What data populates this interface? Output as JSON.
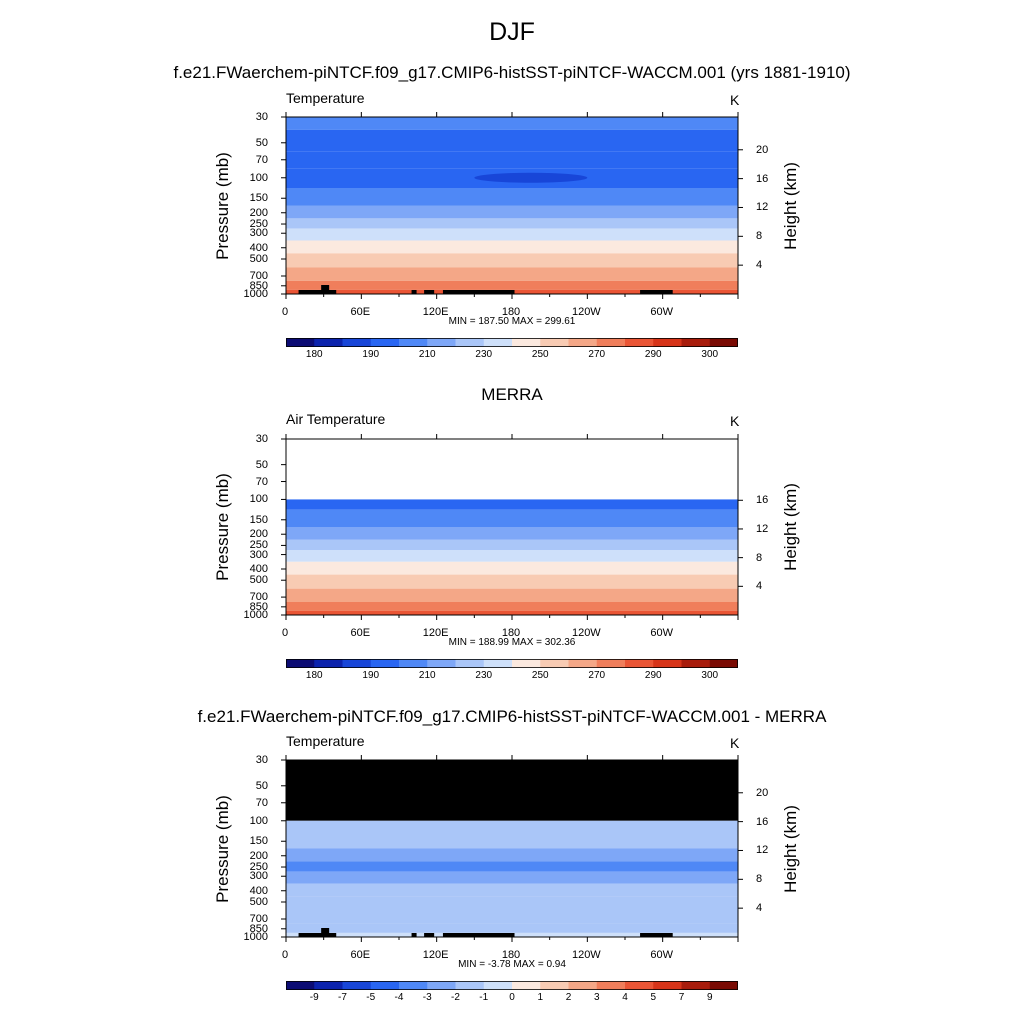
{
  "page_title": "DJF",
  "colors": {
    "temperature_scale": [
      "#0c0c74",
      "#0c23ad",
      "#1846d8",
      "#2966f2",
      "#4f88f6",
      "#7ea7f7",
      "#aac6f8",
      "#cee0fa",
      "#fbe9df",
      "#f8cbb3",
      "#f4a787",
      "#f07e5b",
      "#ea5535",
      "#d73419",
      "#a81c0c",
      "#7a0a03"
    ],
    "difference_scale": [
      "#0c0c74",
      "#0c23ad",
      "#1846d8",
      "#2966f2",
      "#4f88f6",
      "#7ea7f7",
      "#aac6f8",
      "#cee0fa",
      "#fbe9df",
      "#f8cbb3",
      "#f4a787",
      "#f07e5b",
      "#ea5535",
      "#d73419",
      "#a81c0c",
      "#7a0a03"
    ],
    "missing_or_terrain": "#000000"
  },
  "panels": [
    {
      "heading": "f.e21.FWaerchem-piNTCF.f09_g17.CMIP6-histSST-piNTCF-WACCM.001 (yrs 1881-1910)",
      "left_label": "Temperature",
      "unit": "K",
      "ylabel": "Pressure (mb)",
      "ylabel_right": "Height (km)",
      "pressure_ticks": [
        "30",
        "50",
        "70",
        "100",
        "150",
        "200",
        "250",
        "300",
        "400",
        "500",
        "700",
        "850",
        "1000"
      ],
      "height_ticks": [
        "20",
        "16",
        "12",
        "8",
        "4"
      ],
      "lon_ticks": [
        "0",
        "60E",
        "120E",
        "180",
        "120W",
        "60W"
      ],
      "stats": "MIN = 187.50  MAX = 299.61",
      "colorbar_labels": [
        "180",
        "190",
        "210",
        "230",
        "250",
        "270",
        "290",
        "300"
      ]
    },
    {
      "heading": "MERRA",
      "left_label": "Air Temperature",
      "unit": "K",
      "ylabel": "Pressure (mb)",
      "ylabel_right": "Height (km)",
      "pressure_ticks": [
        "30",
        "50",
        "70",
        "100",
        "150",
        "200",
        "250",
        "300",
        "400",
        "500",
        "700",
        "850",
        "1000"
      ],
      "height_ticks": [
        "16",
        "12",
        "8",
        "4"
      ],
      "lon_ticks": [
        "0",
        "60E",
        "120E",
        "180",
        "120W",
        "60W"
      ],
      "stats": "MIN = 188.99  MAX = 302.36",
      "colorbar_labels": [
        "180",
        "190",
        "210",
        "230",
        "250",
        "270",
        "290",
        "300"
      ]
    },
    {
      "heading": "f.e21.FWaerchem-piNTCF.f09_g17.CMIP6-histSST-piNTCF-WACCM.001 - MERRA",
      "left_label": "Temperature",
      "unit": "K",
      "ylabel": "Pressure (mb)",
      "ylabel_right": "Height (km)",
      "pressure_ticks": [
        "30",
        "50",
        "70",
        "100",
        "150",
        "200",
        "250",
        "300",
        "400",
        "500",
        "700",
        "850",
        "1000"
      ],
      "height_ticks": [
        "20",
        "16",
        "12",
        "8",
        "4"
      ],
      "lon_ticks": [
        "0",
        "60E",
        "120E",
        "180",
        "120W",
        "60W"
      ],
      "stats": "MIN =  -3.78  MAX =   0.94",
      "colorbar_labels": [
        "-9",
        "-7",
        "-5",
        "-4",
        "-3",
        "-2",
        "-1",
        "0",
        "1",
        "2",
        "3",
        "4",
        "5",
        "7",
        "9"
      ]
    }
  ],
  "chart_data": [
    {
      "type": "heatmap",
      "title": "Temperature",
      "units": "K",
      "x_axis": "longitude",
      "xlim": [
        0,
        360
      ],
      "y_axis": "pressure (mb), log scale, inverted",
      "ylim": [
        1000,
        30
      ],
      "levels": [
        175,
        180,
        185,
        190,
        200,
        210,
        220,
        230,
        240,
        250,
        260,
        270,
        280,
        290,
        295,
        300,
        305
      ],
      "profile_by_pressure": [
        {
          "p": 30,
          "K": 202.5
        },
        {
          "p": 50,
          "K": 197.5
        },
        {
          "p": 70,
          "K": 192.5
        },
        {
          "p": 100,
          "K": 192.5
        },
        {
          "p": 150,
          "K": 205
        },
        {
          "p": 200,
          "K": 215
        },
        {
          "p": 250,
          "K": 225
        },
        {
          "p": 300,
          "K": 235
        },
        {
          "p": 400,
          "K": 245
        },
        {
          "p": 500,
          "K": 255
        },
        {
          "p": 700,
          "K": 265
        },
        {
          "p": 850,
          "K": 275
        },
        {
          "p": 1000,
          "K": 285
        }
      ],
      "coldest_region": {
        "lon_range": [
          150,
          240
        ],
        "p": 100,
        "K": 187.5
      },
      "min": 187.5,
      "max": 299.61
    },
    {
      "type": "heatmap",
      "title": "Air Temperature",
      "units": "K",
      "x_axis": "longitude",
      "xlim": [
        0,
        360
      ],
      "y_axis": "pressure (mb), log scale, inverted",
      "ylim": [
        1000,
        30
      ],
      "data_top_p": 100,
      "levels": [
        175,
        180,
        185,
        190,
        200,
        210,
        220,
        230,
        240,
        250,
        260,
        270,
        280,
        290,
        295,
        300,
        305
      ],
      "profile_by_pressure": [
        {
          "p": 100,
          "K": 192.5
        },
        {
          "p": 150,
          "K": 205
        },
        {
          "p": 200,
          "K": 215
        },
        {
          "p": 250,
          "K": 225
        },
        {
          "p": 300,
          "K": 235
        },
        {
          "p": 400,
          "K": 245
        },
        {
          "p": 500,
          "K": 255
        },
        {
          "p": 700,
          "K": 265
        },
        {
          "p": 850,
          "K": 275
        },
        {
          "p": 1000,
          "K": 285
        }
      ],
      "min": 188.99,
      "max": 302.36
    },
    {
      "type": "heatmap",
      "title": "Temperature",
      "units": "K",
      "x_axis": "longitude",
      "xlim": [
        0,
        360
      ],
      "y_axis": "pressure (mb), log scale, inverted",
      "ylim": [
        1000,
        30
      ],
      "missing_above_p": 100,
      "levels": [
        -11,
        -9,
        -7,
        -5,
        -4,
        -3,
        -2,
        -1,
        0,
        1,
        2,
        3,
        4,
        5,
        7,
        9,
        11
      ],
      "profile_by_pressure": [
        {
          "p": 100,
          "K": -1.5
        },
        {
          "p": 150,
          "K": -1.5
        },
        {
          "p": 200,
          "K": -2.5
        },
        {
          "p": 250,
          "K": -3.5
        },
        {
          "p": 300,
          "K": -2.5
        },
        {
          "p": 400,
          "K": -1.5
        },
        {
          "p": 500,
          "K": -1.5
        },
        {
          "p": 700,
          "K": -1.5
        },
        {
          "p": 850,
          "K": -1.5
        },
        {
          "p": 1000,
          "K": -0.5
        }
      ],
      "min": -3.78,
      "max": 0.94
    }
  ]
}
